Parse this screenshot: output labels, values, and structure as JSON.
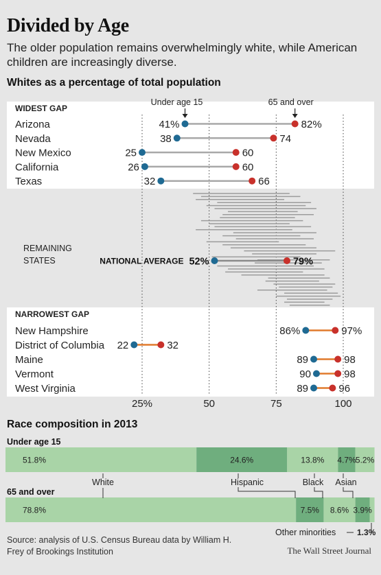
{
  "title": "Divided by Age",
  "subtitle": "The older population remains overwhelmingly white, while American children are increasingly diverse.",
  "source": "Source: analysis of U.S. Census Bureau data by William H. Frey of Brookings Institution",
  "credit": "The Wall Street Journal",
  "colors": {
    "under15_dot": "#1f6a93",
    "over65_dot": "#c8312b",
    "widest_line": "#a8a8a8",
    "narrowest_line": "#e07a2c",
    "panel_bg": "#ffffff",
    "page_bg": "#e6e6e6",
    "white_bar": "#a9d4a7",
    "hispanic_bar": "#6fae7e",
    "black_bar": "#a9d4a7",
    "asian_bar": "#6fae7e",
    "other_bar": "#a9d4a7"
  },
  "chart_data": [
    {
      "type": "dumbbell",
      "title": "Whites as a percentage of total population",
      "xlim": [
        25,
        100
      ],
      "x_ticks": [
        25,
        50,
        75,
        100
      ],
      "x_tick_labels": [
        "25%",
        "50",
        "75",
        "100"
      ],
      "series_labels": [
        "Under age 15",
        "65 and over"
      ],
      "widest_gap": {
        "label": "WIDEST GAP",
        "rows": [
          {
            "name": "Arizona",
            "under15": 41,
            "over65": 82,
            "under15_label": "41%",
            "over65_label": "82%"
          },
          {
            "name": "Nevada",
            "under15": 38,
            "over65": 74,
            "under15_label": "38",
            "over65_label": "74"
          },
          {
            "name": "New Mexico",
            "under15": 25,
            "over65": 60,
            "under15_label": "25",
            "over65_label": "60"
          },
          {
            "name": "California",
            "under15": 26,
            "over65": 60,
            "under15_label": "26",
            "over65_label": "60"
          },
          {
            "name": "Texas",
            "under15": 32,
            "over65": 66,
            "under15_label": "32",
            "over65_label": "66"
          }
        ]
      },
      "remaining_states": {
        "label": "REMAINING STATES",
        "label_lines": [
          "REMAINING",
          "STATES"
        ],
        "average_label": "NATIONAL AVERAGE",
        "average": {
          "under15": 52,
          "over65": 79,
          "under15_label": "52%",
          "over65_label": "79%"
        },
        "ranges": [
          [
            44,
            80
          ],
          [
            47,
            84
          ],
          [
            45,
            78
          ],
          [
            53,
            88
          ],
          [
            49,
            86
          ],
          [
            52,
            90
          ],
          [
            57,
            83
          ],
          [
            55,
            89
          ],
          [
            54,
            82
          ],
          [
            47,
            85
          ],
          [
            50,
            80
          ],
          [
            52,
            88
          ],
          [
            45,
            81
          ],
          [
            59,
            90
          ],
          [
            55,
            84
          ],
          [
            60,
            89
          ],
          [
            49,
            76
          ],
          [
            55,
            86
          ],
          [
            58,
            90
          ],
          [
            63,
            97
          ],
          [
            66,
            90
          ],
          [
            51,
            84
          ],
          [
            68,
            95
          ],
          [
            67,
            92
          ],
          [
            53,
            89
          ],
          [
            57,
            93
          ],
          [
            56,
            85
          ],
          [
            62,
            93
          ],
          [
            72,
            95
          ],
          [
            71,
            91
          ],
          [
            74,
            97
          ],
          [
            76,
            96
          ],
          [
            68,
            94
          ],
          [
            78,
            98
          ],
          [
            75,
            99
          ],
          [
            79,
            96
          ],
          [
            78,
            93
          ],
          [
            80,
            95
          ]
        ]
      },
      "narrowest_gap": {
        "label": "NARROWEST GAP",
        "rows": [
          {
            "name": "New Hampshire",
            "under15": 86,
            "over65": 97,
            "under15_label": "86%",
            "over65_label": "97%"
          },
          {
            "name": "District of Columbia",
            "under15": 22,
            "over65": 32,
            "under15_label": "22",
            "over65_label": "32"
          },
          {
            "name": "Maine",
            "under15": 89,
            "over65": 98,
            "under15_label": "89",
            "over65_label": "98"
          },
          {
            "name": "Vermont",
            "under15": 90,
            "over65": 98,
            "under15_label": "90",
            "over65_label": "98"
          },
          {
            "name": "West Virginia",
            "under15": 89,
            "over65": 96,
            "under15_label": "89",
            "over65_label": "96"
          }
        ]
      }
    },
    {
      "type": "stacked_bar",
      "title": "Race composition in 2013",
      "categories": [
        "White",
        "Hispanic",
        "Black",
        "Asian",
        "Other minorities"
      ],
      "series": [
        {
          "name": "Under age 15",
          "values": [
            51.8,
            24.6,
            13.8,
            4.7,
            5.2
          ],
          "labels": [
            "51.8%",
            "24.6%",
            "13.8%",
            "4.7%",
            "5.2%"
          ]
        },
        {
          "name": "65 and over",
          "values": [
            78.8,
            7.5,
            8.6,
            3.9,
            1.3
          ],
          "labels": [
            "78.8%",
            "7.5%",
            "8.6%",
            "3.9%",
            "1.3%"
          ]
        }
      ]
    }
  ]
}
